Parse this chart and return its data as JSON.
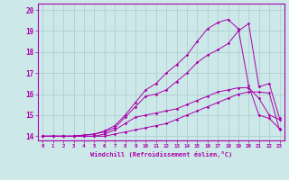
{
  "title": "",
  "xlabel": "Windchill (Refroidissement éolien,°C)",
  "background_color": "#cce8e8",
  "grid_color": "#aacccc",
  "line_color": "#aa00aa",
  "xlim": [
    -0.5,
    23.5
  ],
  "ylim": [
    13.8,
    20.3
  ],
  "xticks": [
    0,
    1,
    2,
    3,
    4,
    5,
    6,
    7,
    8,
    9,
    10,
    11,
    12,
    13,
    14,
    15,
    16,
    17,
    18,
    19,
    20,
    21,
    22,
    23
  ],
  "yticks": [
    14,
    15,
    16,
    17,
    18,
    19,
    20
  ],
  "curves": [
    [
      14.0,
      14.0,
      14.0,
      14.0,
      14.05,
      14.1,
      14.25,
      14.5,
      15.0,
      15.6,
      16.2,
      16.5,
      17.0,
      17.4,
      17.85,
      18.5,
      19.1,
      19.4,
      19.55,
      19.1,
      16.4,
      15.0,
      14.85,
      14.35
    ],
    [
      14.0,
      14.0,
      14.0,
      14.0,
      14.05,
      14.1,
      14.2,
      14.4,
      14.9,
      15.4,
      15.9,
      16.0,
      16.2,
      16.6,
      17.0,
      17.5,
      17.85,
      18.1,
      18.4,
      19.0,
      19.35,
      16.35,
      16.5,
      14.85
    ],
    [
      14.0,
      14.0,
      14.0,
      14.0,
      14.0,
      14.0,
      14.1,
      14.3,
      14.6,
      14.9,
      15.0,
      15.1,
      15.2,
      15.3,
      15.5,
      15.7,
      15.9,
      16.1,
      16.2,
      16.3,
      16.3,
      15.8,
      15.0,
      14.8
    ],
    [
      14.0,
      14.0,
      14.0,
      14.0,
      14.0,
      14.0,
      14.0,
      14.1,
      14.2,
      14.3,
      14.4,
      14.5,
      14.6,
      14.8,
      15.0,
      15.2,
      15.4,
      15.6,
      15.8,
      16.0,
      16.1,
      16.1,
      16.05,
      14.3
    ]
  ]
}
